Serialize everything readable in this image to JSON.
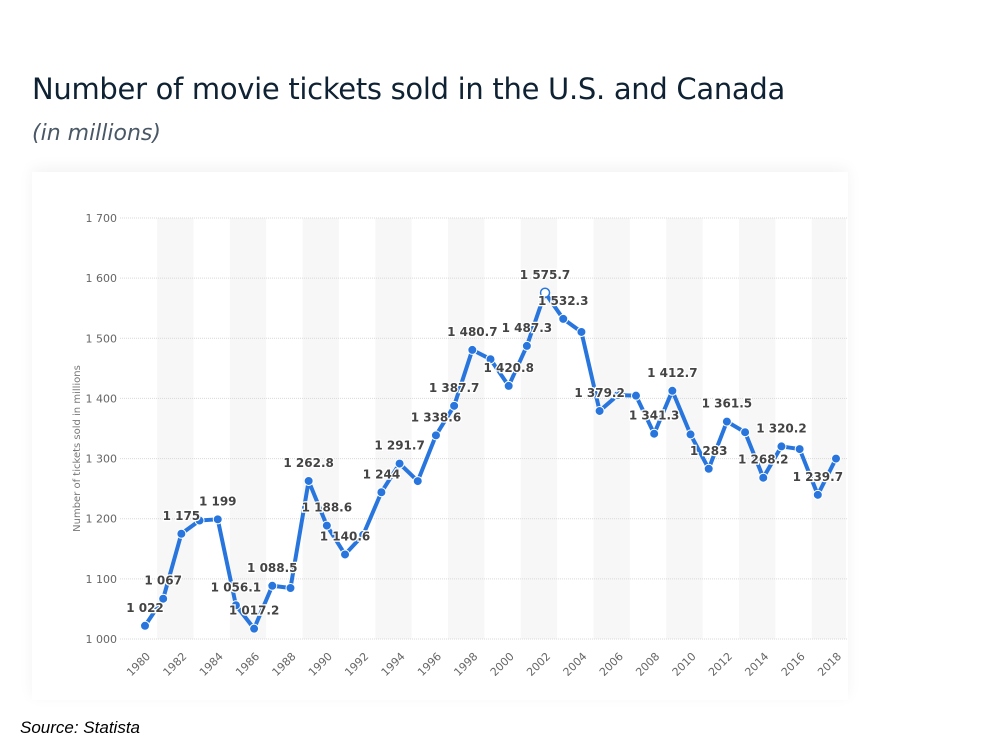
{
  "title": "Number of movie tickets sold in the U.S. and Canada",
  "subtitle": "(in millions)",
  "source": "Source: Statista",
  "chart_data": {
    "type": "line",
    "title": "Number of movie tickets sold in the U.S. and Canada",
    "subtitle": "(in millions)",
    "ylabel": "Number of tickets sold in millions",
    "xlabel": "",
    "ylim": [
      1000,
      1700
    ],
    "yticks": [
      1000,
      1100,
      1200,
      1300,
      1400,
      1500,
      1600,
      1700
    ],
    "ytick_labels": [
      "1 000",
      "1 100",
      "1 200",
      "1 300",
      "1 400",
      "1 500",
      "1 600",
      "1 700"
    ],
    "xtick_labels": [
      "1980",
      "1982",
      "1984",
      "1986",
      "1988",
      "1990",
      "1992",
      "1994",
      "1996",
      "1998",
      "2000",
      "2002",
      "2004",
      "2006",
      "2008",
      "2010",
      "2012",
      "2014",
      "2016",
      "2018"
    ],
    "grid": true,
    "color": "#2876dd",
    "x": [
      1980,
      1981,
      1982,
      1983,
      1984,
      1985,
      1986,
      1987,
      1988,
      1989,
      1990,
      1991,
      1992,
      1993,
      1994,
      1995,
      1996,
      1997,
      1998,
      1999,
      2000,
      2001,
      2002,
      2003,
      2004,
      2005,
      2006,
      2007,
      2008,
      2009,
      2010,
      2011,
      2012,
      2013,
      2014,
      2015,
      2016,
      2017,
      2018
    ],
    "values": [
      1022,
      1067,
      1175,
      1197,
      1199,
      1056.1,
      1017.2,
      1088.5,
      1084.8,
      1262.8,
      1188.6,
      1140.6,
      1173.2,
      1244,
      1291.7,
      1262.6,
      1338.6,
      1387.7,
      1480.7,
      1465.2,
      1420.8,
      1487.3,
      1575.7,
      1532.3,
      1510.5,
      1379.2,
      1405.5,
      1404.6,
      1341.3,
      1412.7,
      1340.2,
      1283,
      1361.5,
      1343.8,
      1268.2,
      1320.2,
      1315.8,
      1239.7,
      1300
    ],
    "data_labels": [
      "1 022",
      "1 067",
      "1 175",
      null,
      "1 199",
      "1 056.1",
      "1 017.2",
      "1 088.5",
      null,
      "1 262.8",
      "1 188.6",
      "1 140.6",
      null,
      "1 244",
      "1 291.7",
      null,
      "1 338.6",
      "1 387.7",
      "1 480.7",
      null,
      "1 420.8",
      "1 487.3",
      "1 575.7",
      "1 532.3",
      null,
      "1 379.2",
      null,
      null,
      "1 341.3",
      "1 412.7",
      null,
      "1 283",
      "1 361.5",
      null,
      "1 268.2",
      "1 320.2",
      null,
      "1 239.7",
      null
    ]
  }
}
